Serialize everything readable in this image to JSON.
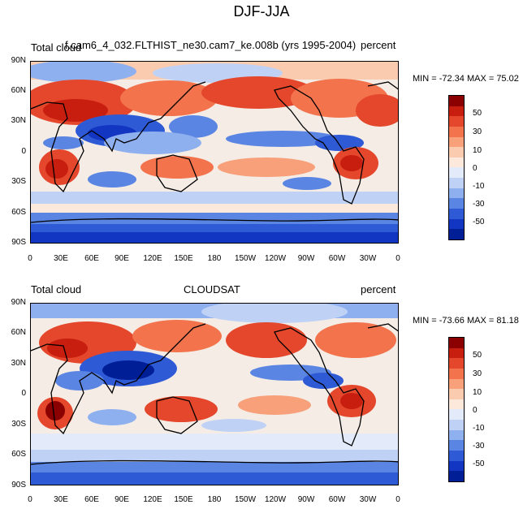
{
  "title": "DJF-JJA",
  "panels": [
    {
      "left_label": "Total cloud",
      "center_label": "f.cam6_4_032.FLTHIST_ne30.cam7_ke.008b (yrs 1995-2004)",
      "right_label": "percent",
      "minmax": "MIN = -72.34  MAX =  75.02"
    },
    {
      "left_label": "Total cloud",
      "center_label": "CLOUDSAT",
      "right_label": "percent",
      "minmax": "MIN = -73.66  MAX =  81.18"
    }
  ],
  "lat_ticks": [
    "90N",
    "60N",
    "30N",
    "0",
    "30S",
    "60S",
    "90S"
  ],
  "lon_ticks": [
    "0",
    "30E",
    "60E",
    "90E",
    "120E",
    "150E",
    "180",
    "150W",
    "120W",
    "90W",
    "60W",
    "30W",
    "0"
  ],
  "colorbar": {
    "labels": [
      "50",
      "30",
      "10",
      "0",
      "-10",
      "-30",
      "-50"
    ],
    "colors": [
      "#8b0000",
      "#c81e10",
      "#e4472b",
      "#f2734c",
      "#f7a07a",
      "#fbcbb0",
      "#fde9dc",
      "#e3ebfb",
      "#bfd2f6",
      "#8fb0ee",
      "#5a85e3",
      "#2f5ad6",
      "#1235c2",
      "#001e96"
    ]
  },
  "palette": {
    "ocean_neutral": "#f3f0ee",
    "red_strong": "#c0281a",
    "red_mid": "#e8593a",
    "red_light": "#f7a07a",
    "blue_strong": "#1a3fc9",
    "blue_mid": "#5a85e3",
    "blue_light": "#bfd2f6",
    "coast": "#000000"
  }
}
